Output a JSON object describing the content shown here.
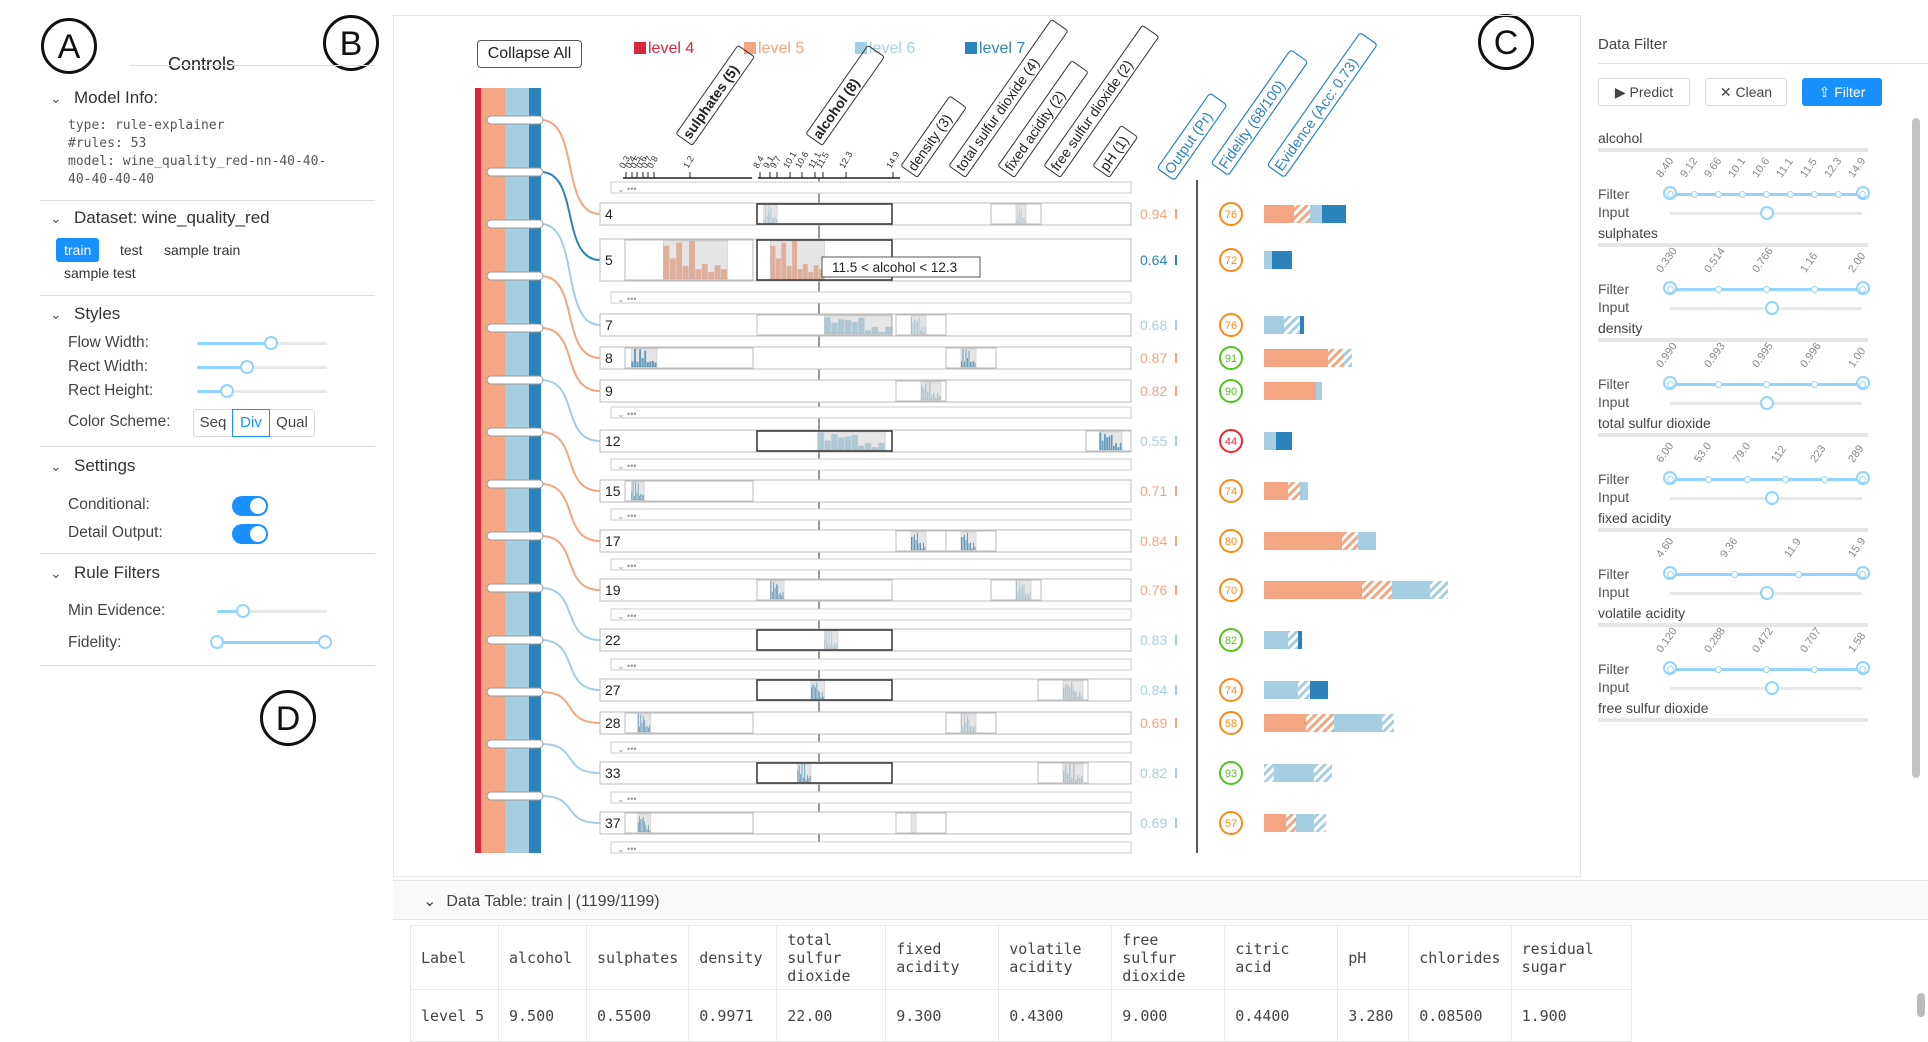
{
  "markers": {
    "a": "A",
    "b": "B",
    "c": "C",
    "d": "D"
  },
  "controls": {
    "title": "Controls",
    "model_info": {
      "header": "Model Info:",
      "type": "type: rule-explainer",
      "rules": "#rules: 53",
      "model_line1": "model: wine_quality_red-nn-40-40-",
      "model_line2": "40-40-40-40"
    },
    "dataset": {
      "header": "Dataset: wine_quality_red",
      "tabs": [
        "train",
        "test",
        "sample train",
        "sample test"
      ],
      "active": "train"
    },
    "styles": {
      "header": "Styles",
      "flow_width_label": "Flow Width:",
      "rect_width_label": "Rect Width:",
      "rect_height_label": "Rect Height:",
      "color_scheme_label": "Color Scheme:",
      "schemes": [
        "Seq",
        "Div",
        "Qual"
      ],
      "active_scheme": "Div",
      "flow_width": 0.58,
      "rect_width": 0.37,
      "rect_height": 0.2
    },
    "settings": {
      "header": "Settings",
      "conditional_label": "Conditional:",
      "detail_output_label": "Detail Output:",
      "conditional": true,
      "detail_output": true
    },
    "rule_filters": {
      "header": "Rule Filters",
      "min_evidence_label": "Min Evidence:",
      "fidelity_label": "Fidelity:",
      "min_evidence": 0.2,
      "fidelity_range": [
        0,
        1
      ]
    }
  },
  "main": {
    "collapse_label": "Collapse All",
    "legend": [
      {
        "label": "level 4",
        "color": "#d7263d"
      },
      {
        "label": "level 5",
        "color": "#f4a582"
      },
      {
        "label": "level 6",
        "color": "#a6cee3"
      },
      {
        "label": "level 7",
        "color": "#2b83ba"
      }
    ],
    "feature_headers": [
      "sulphates (5)",
      "alcohol (8)",
      "density (3)",
      "total sulfur dioxide (4)",
      "fixed acidity (2)",
      "free sulfur dioxide (2)",
      "pH (1)"
    ],
    "column_headers": [
      "Output (Pr)",
      "Fidelity (68/100)",
      "Evidence (Acc: 0.73)"
    ],
    "sulphates_ticks": [
      "0.3",
      "0.4",
      "0.5",
      "0.6",
      "0.7",
      "0.8",
      "1.2"
    ],
    "alcohol_ticks": [
      "8.4",
      "9.1",
      "9.7",
      "10.1",
      "10.6",
      "11.1",
      "11.5",
      "12.3",
      "14.9"
    ],
    "tooltip": "11.5 < alcohol < 12.3",
    "rules": [
      {
        "id": "4",
        "output": "0.94",
        "fidelity": "76",
        "fid_color": "#fa8c16",
        "out_color": "#f4a582"
      },
      {
        "id": "5",
        "output": "0.64",
        "fidelity": "72",
        "fid_color": "#fa8c16",
        "out_color": "#2b83ba"
      },
      {
        "id": "7",
        "output": "0.68",
        "fidelity": "76",
        "fid_color": "#fa8c16",
        "out_color": "#a6cee3"
      },
      {
        "id": "8",
        "output": "0.87",
        "fidelity": "91",
        "fid_color": "#52c41a",
        "out_color": "#f4a582"
      },
      {
        "id": "9",
        "output": "0.82",
        "fidelity": "90",
        "fid_color": "#52c41a",
        "out_color": "#f4a582"
      },
      {
        "id": "12",
        "output": "0.55",
        "fidelity": "44",
        "fid_color": "#f5222d",
        "out_color": "#a6cee3"
      },
      {
        "id": "15",
        "output": "0.71",
        "fidelity": "74",
        "fid_color": "#fa8c16",
        "out_color": "#f4a582"
      },
      {
        "id": "17",
        "output": "0.84",
        "fidelity": "80",
        "fid_color": "#fa8c16",
        "out_color": "#f4a582"
      },
      {
        "id": "19",
        "output": "0.76",
        "fidelity": "70",
        "fid_color": "#fa8c16",
        "out_color": "#f4a582"
      },
      {
        "id": "22",
        "output": "0.83",
        "fidelity": "82",
        "fid_color": "#52c41a",
        "out_color": "#a6cee3"
      },
      {
        "id": "27",
        "output": "0.84",
        "fidelity": "74",
        "fid_color": "#fa8c16",
        "out_color": "#a6cee3"
      },
      {
        "id": "28",
        "output": "0.69",
        "fidelity": "58",
        "fid_color": "#fa8c16",
        "out_color": "#f4a582"
      },
      {
        "id": "33",
        "output": "0.82",
        "fidelity": "93",
        "fid_color": "#52c41a",
        "out_color": "#a6cee3"
      },
      {
        "id": "37",
        "output": "0.69",
        "fidelity": "57",
        "fid_color": "#fa8c16",
        "out_color": "#a6cee3"
      }
    ]
  },
  "filter": {
    "title": "Data Filter",
    "predict": "Predict",
    "clean": "Clean",
    "filter": "Filter",
    "filter_label": "Filter",
    "input_label": "Input",
    "features": [
      {
        "name": "alcohol",
        "ticks": [
          "8.40",
          "9.12",
          "9.66",
          "10.1",
          "10.6",
          "11.1",
          "11.5",
          "12.3",
          "14.9"
        ]
      },
      {
        "name": "sulphates",
        "ticks": [
          "0.330",
          "0.514",
          "0.766",
          "1.16",
          "2.00"
        ]
      },
      {
        "name": "density",
        "ticks": [
          "0.990",
          "0.993",
          "0.995",
          "0.996",
          "1.00"
        ]
      },
      {
        "name": "total sulfur dioxide",
        "ticks": [
          "6.00",
          "53.0",
          "79.0",
          "112",
          "223",
          "289"
        ]
      },
      {
        "name": "fixed acidity",
        "ticks": [
          "4.60",
          "9.36",
          "11.9",
          "15.9"
        ]
      },
      {
        "name": "volatile acidity",
        "ticks": [
          "0.120",
          "0.288",
          "0.472",
          "0.707",
          "1.58"
        ]
      },
      {
        "name": "free sulfur dioxide",
        "ticks": []
      }
    ]
  },
  "table": {
    "title": "Data Table: train | (1199/1199)",
    "columns": [
      "Label",
      "alcohol",
      "sulphates",
      "density",
      "total sulfur dioxide",
      "fixed acidity",
      "volatile acidity",
      "free sulfur dioxide",
      "citric acid",
      "pH",
      "chlorides",
      "residual sugar"
    ],
    "rows": [
      [
        "level 5",
        "9.500",
        "0.5500",
        "0.9971",
        "22.00",
        "9.300",
        "0.4300",
        "9.000",
        "0.4400",
        "3.280",
        "0.08500",
        "1.900"
      ]
    ]
  }
}
